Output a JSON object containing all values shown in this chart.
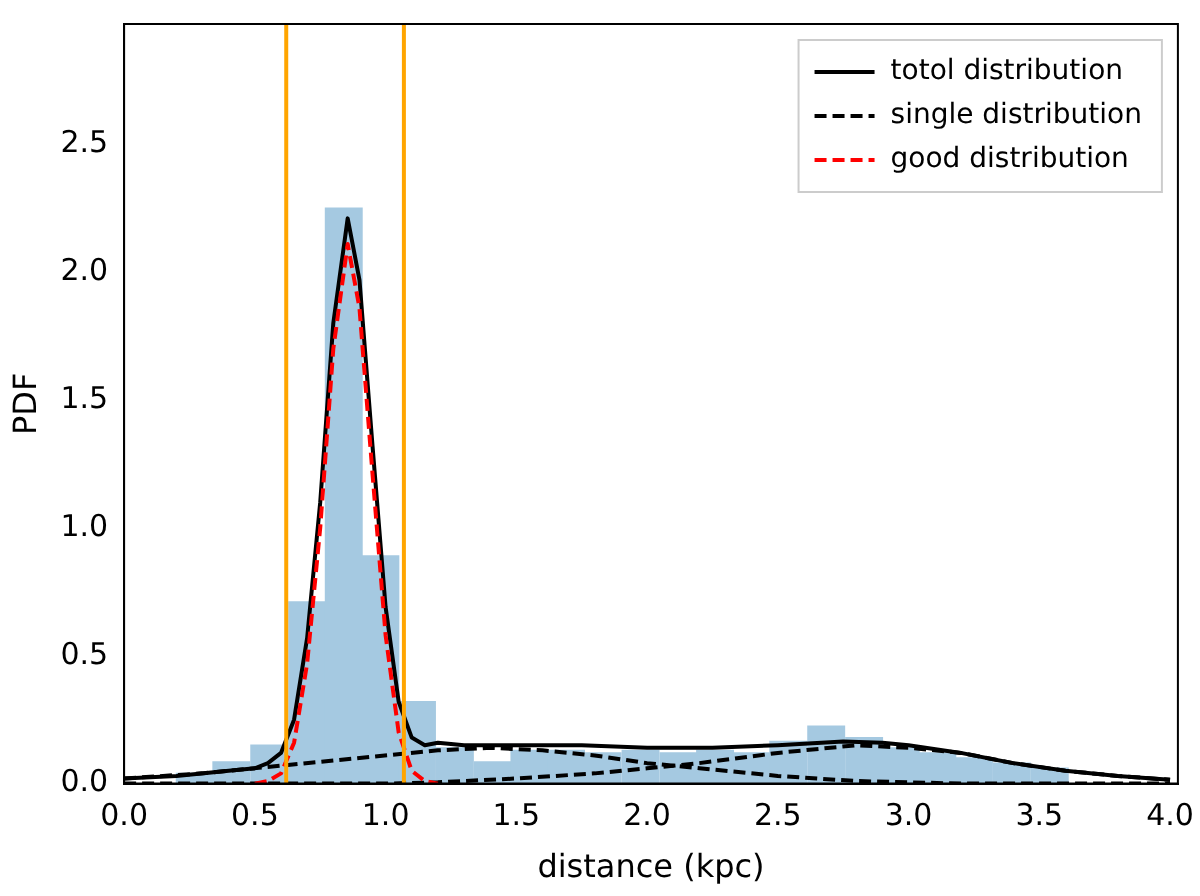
{
  "chart_data": {
    "type": "histogram",
    "xlabel": "distance (kpc)",
    "ylabel": "PDF",
    "bins": [
      0.2,
      0.34,
      0.48,
      0.63,
      0.77,
      0.91,
      1.05,
      1.19,
      1.34,
      1.48,
      1.62,
      1.76,
      1.9,
      2.05,
      2.19,
      2.33,
      2.47,
      2.61,
      2.76,
      2.9,
      3.04,
      3.18,
      3.32,
      3.47,
      3.61
    ],
    "values": [
      0.04,
      0.085,
      0.15,
      0.71,
      2.25,
      0.89,
      0.32,
      0.14,
      0.085,
      0.13,
      0.13,
      0.12,
      0.13,
      0.12,
      0.13,
      0.12,
      0.165,
      0.225,
      0.18,
      0.14,
      0.12,
      0.1,
      0.08,
      0.06
    ],
    "color": "#a5c9e1",
    "series": [
      {
        "type": "line",
        "name": "totol distribution",
        "color": "#000000",
        "line_style": "solid",
        "x": [
          0,
          0.2,
          0.4,
          0.5,
          0.55,
          0.6,
          0.65,
          0.7,
          0.75,
          0.8,
          0.855,
          0.9,
          0.95,
          1.0,
          1.05,
          1.1,
          1.15,
          1.2,
          1.3,
          1.5,
          1.75,
          2.0,
          2.25,
          2.5,
          2.75,
          2.9,
          3.0,
          3.2,
          3.4,
          3.6,
          3.8,
          4.0
        ],
        "values": [
          0.02,
          0.03,
          0.05,
          0.06,
          0.08,
          0.12,
          0.25,
          0.57,
          1.1,
          1.8,
          2.21,
          1.97,
          1.32,
          0.69,
          0.32,
          0.18,
          0.15,
          0.16,
          0.15,
          0.15,
          0.15,
          0.14,
          0.14,
          0.15,
          0.165,
          0.16,
          0.15,
          0.12,
          0.08,
          0.05,
          0.03,
          0.015
        ]
      },
      {
        "type": "line",
        "name": "single distribution",
        "color": "#000000",
        "line_style": "dashed",
        "x": [
          0,
          0.3,
          0.6,
          0.9,
          1.2,
          1.4,
          1.6,
          1.8,
          2.0,
          2.2,
          2.5,
          2.8,
          3.2,
          4.0
        ],
        "values": [
          0.02,
          0.04,
          0.07,
          0.1,
          0.13,
          0.14,
          0.13,
          0.11,
          0.08,
          0.06,
          0.03,
          0.01,
          0,
          0
        ]
      },
      {
        "type": "line",
        "color": "#000000",
        "line_style": "dashed",
        "x": [
          0,
          1.0,
          1.2,
          1.5,
          1.8,
          2.0,
          2.2,
          2.5,
          2.8,
          3.0,
          3.2,
          3.4,
          3.6,
          3.8,
          4.0
        ],
        "values": [
          0,
          0,
          0.005,
          0.02,
          0.04,
          0.06,
          0.08,
          0.12,
          0.15,
          0.14,
          0.12,
          0.08,
          0.05,
          0.03,
          0.015
        ]
      },
      {
        "type": "line",
        "name": "good distribution",
        "color": "#ff0000",
        "line_style": "dashed",
        "x": [
          0.5,
          0.55,
          0.6,
          0.65,
          0.7,
          0.75,
          0.8,
          0.855,
          0.9,
          0.95,
          1.0,
          1.05,
          1.1,
          1.15,
          1.2
        ],
        "values": [
          0,
          0.01,
          0.04,
          0.16,
          0.47,
          1.0,
          1.7,
          2.11,
          1.86,
          1.21,
          0.58,
          0.2,
          0.05,
          0.01,
          0
        ]
      }
    ],
    "ref_lines": [
      {
        "axis": "x",
        "value": 0.62,
        "color": "#ffa500"
      },
      {
        "axis": "x",
        "value": 1.07,
        "color": "#ffa500"
      }
    ],
    "xlim": [
      0,
      4.03
    ],
    "ylim": [
      0,
      2.97
    ],
    "xticks": [
      {
        "value": 0,
        "label": "0.0"
      },
      0.5,
      {
        "value": 1,
        "label": "1.0"
      },
      1.5,
      {
        "value": 2,
        "label": "2.0"
      },
      2.5,
      {
        "value": 3,
        "label": "3.0"
      },
      3.5,
      {
        "value": 4,
        "label": "4.0"
      }
    ],
    "yticks": [
      {
        "value": 0,
        "label": "0.0"
      },
      0.5,
      {
        "value": 1,
        "label": "1.0"
      },
      1.5,
      {
        "value": 2,
        "label": "2.0"
      },
      2.5
    ],
    "grid": false,
    "legend": "top right",
    "marker": "none"
  }
}
